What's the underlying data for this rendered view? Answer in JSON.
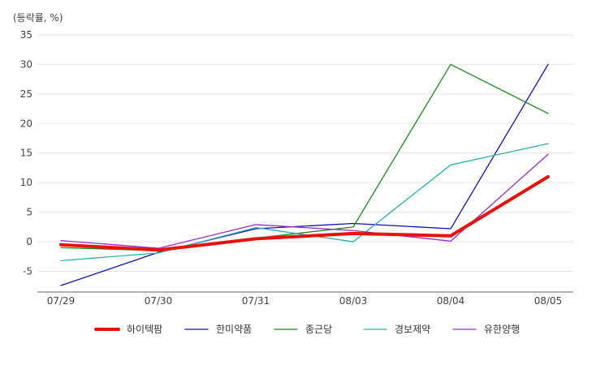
{
  "chart_data": {
    "type": "line",
    "unit_label": "(등락률, %)",
    "categories": [
      "07/29",
      "07/30",
      "07/31",
      "08/03",
      "08/04",
      "08/05"
    ],
    "ylim": [
      -8.5,
      35
    ],
    "yticks": [
      35,
      30,
      25,
      20,
      15,
      10,
      5,
      0,
      -5
    ],
    "grid": true,
    "legend_position": "bottom",
    "series": [
      {
        "name": "하이텍팜",
        "color": "#e8120c",
        "emphasis": true,
        "values": [
          -0.5,
          -1.4,
          0.5,
          1.4,
          1.0,
          11.0
        ]
      },
      {
        "name": "한미약품",
        "color": "#1010b4",
        "emphasis": false,
        "values": [
          -7.4,
          -1.8,
          2.2,
          3.1,
          2.2,
          30.0
        ]
      },
      {
        "name": "종근당",
        "color": "#1a8a1a",
        "emphasis": false,
        "values": [
          -1.0,
          -1.5,
          0.6,
          2.5,
          30.0,
          21.7
        ]
      },
      {
        "name": "경보제약",
        "color": "#2ab0b0",
        "emphasis": false,
        "values": [
          -3.2,
          -1.9,
          2.4,
          0.0,
          13.0,
          16.6
        ]
      },
      {
        "name": "유한양행",
        "color": "#9a2ccc",
        "emphasis": false,
        "values": [
          0.2,
          -1.1,
          2.9,
          1.9,
          0.1,
          14.8
        ]
      }
    ]
  }
}
